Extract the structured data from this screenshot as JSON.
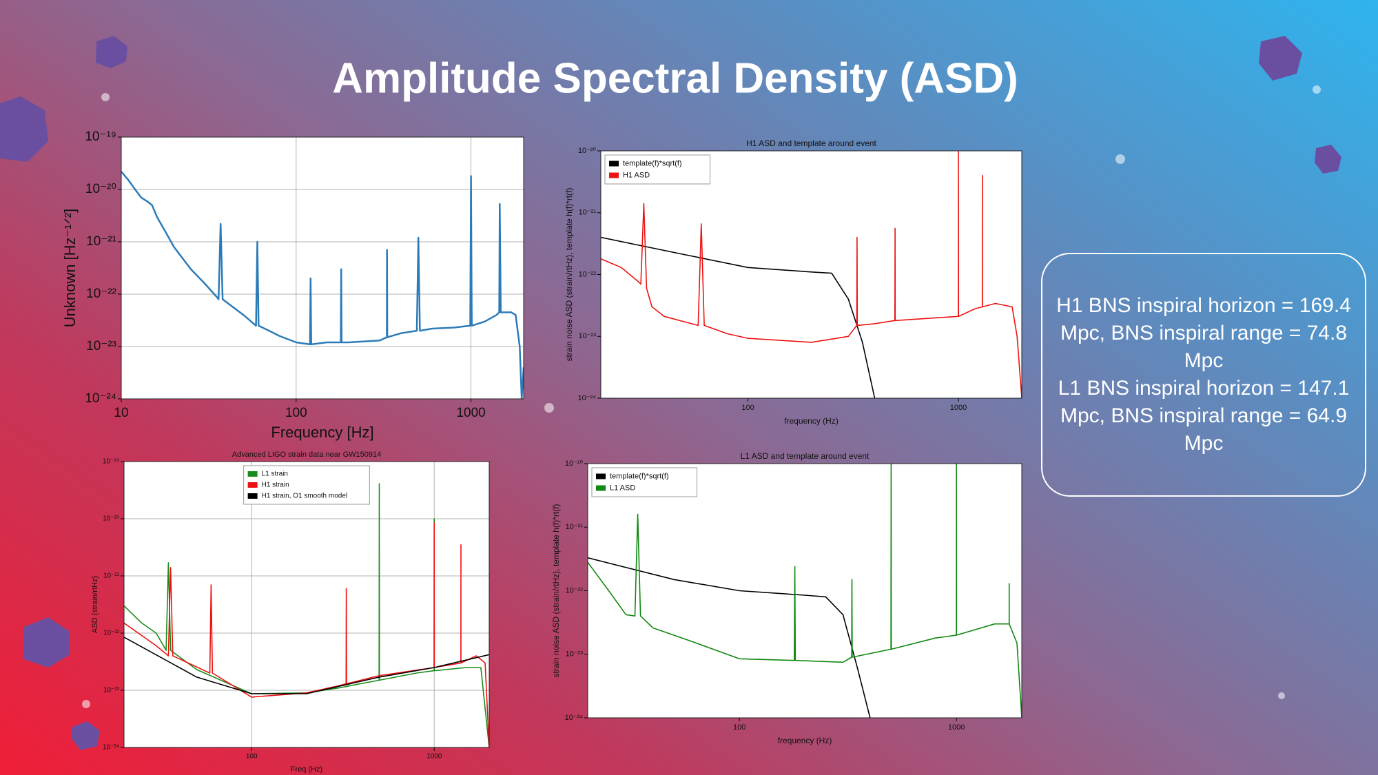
{
  "slide": {
    "title": "Amplitude Spectral Density (ASD)",
    "info_box": [
      "H1 BNS inspiral horizon = 169.4 Mpc, BNS inspiral range = 74.8 Mpc",
      "L1 BNS inspiral horizon = 147.1 Mpc, BNS inspiral range = 64.9 Mpc"
    ]
  },
  "chart_data": [
    {
      "type": "line",
      "x_label": "Frequency [Hz]",
      "y_label": "Unknown [Hz⁻¹ᐟ²]",
      "log_x": true,
      "log_y": true,
      "grid": true,
      "color": "#2b7bb9",
      "x": [
        10,
        11,
        12,
        13,
        14,
        15,
        16,
        18,
        20,
        25,
        30,
        35,
        36,
        37,
        38,
        40,
        50,
        59,
        60,
        61,
        70,
        80,
        100,
        120,
        121,
        122,
        150,
        180,
        181,
        182,
        200,
        300,
        330,
        331,
        332,
        400,
        490,
        500,
        510,
        600,
        800,
        990,
        1000,
        1010,
        1200,
        1400,
        1450,
        1460,
        1480,
        1700,
        1800,
        1900,
        1950,
        2000
      ],
      "values": [
        2.2e-20,
        1.5e-20,
        1e-20,
        7e-21,
        6e-21,
        5e-21,
        3e-21,
        1.5e-21,
        8e-22,
        3e-22,
        1.6e-22,
        9e-23,
        8e-23,
        2.2e-21,
        8e-23,
        7e-23,
        4e-23,
        2.5e-23,
        1e-21,
        2.5e-23,
        2e-23,
        1.6e-23,
        1.2e-23,
        1.1e-23,
        2e-22,
        1.1e-23,
        1.2e-23,
        1.2e-23,
        3e-22,
        1.2e-23,
        1.2e-23,
        1.3e-23,
        1.5e-23,
        7e-22,
        1.5e-23,
        1.8e-23,
        2e-23,
        1.2e-21,
        2e-23,
        2.2e-23,
        2.3e-23,
        2.5e-23,
        1.8e-20,
        2.5e-23,
        3e-23,
        4e-23,
        4.5e-23,
        5.3e-21,
        4.5e-23,
        4.5e-23,
        4e-23,
        1e-23,
        1e-24,
        4e-24
      ],
      "xlim": [
        10,
        2000
      ],
      "ylim": [
        1e-24,
        1e-19
      ],
      "xticks": [
        10,
        100,
        1000
      ],
      "yticks": [
        {
          "value": 1e-24,
          "label": "10⁻²⁴"
        },
        {
          "value": 1e-23,
          "label": "10⁻²³"
        },
        {
          "value": 1e-22,
          "label": "10⁻²²"
        },
        {
          "value": 1e-21,
          "label": "10⁻²¹"
        },
        {
          "value": 1e-20,
          "label": "10⁻²⁰"
        },
        {
          "value": 1e-19,
          "label": "10⁻¹⁹"
        }
      ]
    },
    {
      "type": "line",
      "title": "H1 ASD and template around event",
      "x_label": "frequency (Hz)",
      "y_label": "strain noise ASD (strain/rtHz), template h(f)*rt(f)",
      "log_x": true,
      "log_y": true,
      "grid": false,
      "legend": "upper left",
      "series": [
        {
          "name": "template(f)*sqrt(f)",
          "color": "#000000",
          "x": [
            20,
            50,
            100,
            200,
            250,
            300,
            350,
            400
          ],
          "values": [
            4e-22,
            2.1e-22,
            1.3e-22,
            1.1e-22,
            1.05e-22,
            4e-23,
            8e-24,
            1e-24
          ]
        },
        {
          "name": "H1 ASD",
          "color": "#ee1111",
          "x": [
            20,
            25,
            30,
            31,
            32,
            33,
            35,
            40,
            58,
            60,
            62,
            80,
            100,
            200,
            300,
            329,
            330,
            331,
            400,
            499,
            500,
            501,
            800,
            999,
            1000,
            1001,
            1200,
            1299,
            1300,
            1301,
            1500,
            1800,
            1900,
            2000
          ],
          "values": [
            1.8e-22,
            1.3e-22,
            7.8e-23,
            7e-23,
            1.4e-21,
            6e-23,
            3e-23,
            2.1e-23,
            1.5e-23,
            6.6e-22,
            1.5e-23,
            1.1e-23,
            9.3e-24,
            8e-24,
            1e-23,
            1.5e-23,
            4e-22,
            1.5e-23,
            1.6e-23,
            1.8e-23,
            5.6e-22,
            1.8e-23,
            2e-23,
            2.1e-23,
            1e-20,
            2.1e-23,
            2.8e-23,
            3e-23,
            4e-21,
            3e-23,
            3.4e-23,
            3e-23,
            1e-23,
            1e-24
          ]
        }
      ],
      "xlim": [
        20,
        2000
      ],
      "ylim": [
        1e-24,
        1e-20
      ],
      "xticks": [
        100,
        1000
      ],
      "yticks": [
        {
          "value": 1e-24,
          "label": "10⁻²⁴"
        },
        {
          "value": 1e-23,
          "label": "10⁻²³"
        },
        {
          "value": 1e-22,
          "label": "10⁻²²"
        },
        {
          "value": 1e-21,
          "label": "10⁻²¹"
        },
        {
          "value": 1e-20,
          "label": "10⁻²⁰"
        }
      ]
    },
    {
      "type": "line",
      "title": "Advanced LIGO strain data near GW150914",
      "x_label": "Freq (Hz)",
      "y_label": "ASD (strain/rtHz)",
      "log_x": true,
      "log_y": true,
      "grid": true,
      "legend": "upper center",
      "series": [
        {
          "name": "L1 strain",
          "color": "#1a8a1a",
          "x": [
            20,
            25,
            30,
            34,
            35,
            36,
            50,
            100,
            200,
            300,
            499,
            500,
            501,
            800,
            999,
            1000,
            1001,
            1500,
            1800,
            2000
          ],
          "values": [
            3e-22,
            1.5e-22,
            1e-22,
            5e-23,
            1.7e-21,
            5e-23,
            2.3e-23,
            8.7e-24,
            9e-24,
            1.1e-23,
            1.5e-23,
            4.1e-20,
            1.5e-23,
            2e-23,
            2.2e-23,
            1e-20,
            2.2e-23,
            2.5e-23,
            2.5e-23,
            1e-24
          ]
        },
        {
          "name": "H1 strain",
          "color": "#ee1111",
          "x": [
            20,
            30,
            35,
            36,
            37,
            59,
            60,
            61,
            100,
            200,
            300,
            329,
            330,
            331,
            500,
            999,
            1000,
            1001,
            1399,
            1400,
            1401,
            1700,
            1900,
            2000
          ],
          "values": [
            1.5e-22,
            6e-23,
            4e-23,
            1.4e-21,
            4e-23,
            2e-23,
            7e-22,
            2e-23,
            7.6e-24,
            9e-24,
            1.2e-23,
            1.3e-23,
            6e-22,
            1.3e-23,
            1.8e-23,
            2.5e-23,
            8.5e-21,
            2.5e-23,
            3e-23,
            3.5e-21,
            3e-23,
            4e-23,
            3e-23,
            1e-24
          ]
        },
        {
          "name": "H1 strain, O1 smooth model",
          "color": "#000000",
          "x": [
            20,
            50,
            100,
            200,
            500,
            1000,
            2000
          ],
          "values": [
            8.5e-23,
            1.7e-23,
            8.7e-24,
            8.7e-24,
            1.7e-23,
            2.5e-23,
            4.2e-23
          ]
        }
      ],
      "xlim": [
        20,
        2000
      ],
      "ylim": [
        1e-24,
        1e-19
      ],
      "xticks": [
        100,
        1000
      ],
      "yticks": [
        {
          "value": 1e-24,
          "label": "10⁻²⁴"
        },
        {
          "value": 1e-23,
          "label": "10⁻²³"
        },
        {
          "value": 1e-22,
          "label": "10⁻²²"
        },
        {
          "value": 1e-21,
          "label": "10⁻²¹"
        },
        {
          "value": 1e-20,
          "label": "10⁻²⁰"
        },
        {
          "value": 1e-19,
          "label": "10⁻¹⁹"
        }
      ]
    },
    {
      "type": "line",
      "title": "L1 ASD and template around event",
      "x_label": "frequency (Hz)",
      "y_label": "strain noise ASD (strain/rtHz), template h(f)*rt(f)",
      "log_x": true,
      "log_y": true,
      "grid": false,
      "legend": "upper left",
      "series": [
        {
          "name": "template(f)*sqrt(f)",
          "color": "#000000",
          "x": [
            20,
            50,
            100,
            200,
            250,
            300,
            350,
            400
          ],
          "values": [
            3.3e-22,
            1.5e-22,
            1e-22,
            8.5e-23,
            8e-23,
            4.2e-23,
            6e-24,
            1e-24
          ]
        },
        {
          "name": "L1 ASD",
          "color": "#118811",
          "x": [
            20,
            25,
            30,
            33,
            34,
            35,
            40,
            60,
            100,
            179,
            180,
            181,
            300,
            329,
            330,
            331,
            499,
            500,
            501,
            800,
            999,
            1000,
            1001,
            1500,
            1749,
            1750,
            1751,
            1900,
            2000
          ],
          "values": [
            2.8e-22,
            1e-22,
            4.2e-23,
            4e-23,
            1.6e-21,
            4e-23,
            2.6e-23,
            1.6e-23,
            8.5e-24,
            8e-24,
            2.4e-22,
            8e-24,
            7.5e-24,
            9e-24,
            1.5e-22,
            9e-24,
            1.2e-23,
            1e-20,
            1.2e-23,
            1.8e-23,
            2e-23,
            1e-20,
            2e-23,
            3e-23,
            3e-23,
            1.3e-22,
            3e-23,
            1.5e-23,
            1e-24
          ]
        }
      ],
      "xlim": [
        20,
        2000
      ],
      "ylim": [
        1e-24,
        1e-20
      ],
      "xticks": [
        100,
        1000
      ],
      "yticks": [
        {
          "value": 1e-24,
          "label": "10⁻²⁴"
        },
        {
          "value": 1e-23,
          "label": "10⁻²³"
        },
        {
          "value": 1e-22,
          "label": "10⁻²²"
        },
        {
          "value": 1e-21,
          "label": "10⁻²¹"
        },
        {
          "value": 1e-20,
          "label": "10⁻²⁰"
        }
      ]
    }
  ]
}
